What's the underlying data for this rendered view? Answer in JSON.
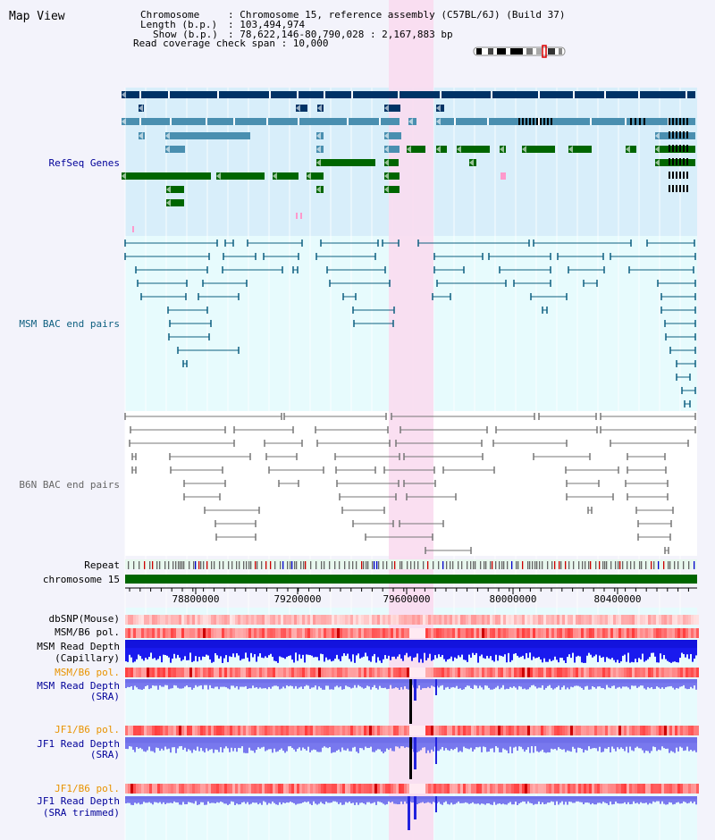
{
  "title": "Map View",
  "header": {
    "chromosome_key": "Chromosome",
    "chromosome_val": ": Chromosome 15, reference assembly (C57BL/6J) (Build 37)",
    "length_key": "Length (b.p.)",
    "length_val": ": 103,494,974",
    "show_key": "Show (b.p.)",
    "show_val": ": 78,622,146-80,790,028 : 2,167,883 bp",
    "coverage_line": "Read coverage check span : 10,000"
  },
  "colors": {
    "refseq_bg": "#d8eefa",
    "bac_bg": "#e7fbfd",
    "highlight": "#fadcf0",
    "navy": "#003366",
    "steel": "#4a8fb0",
    "green": "#006600",
    "msm_line": "#0e5f80",
    "b6n_line": "#777777",
    "label_navy": "#000099",
    "label_steel": "#0e5f80",
    "label_gray": "#666666",
    "label_orange": "#e89300"
  },
  "tracks": {
    "refseq": "RefSeq Genes",
    "msm_bac": "MSM BAC end pairs",
    "b6n_bac": "B6N BAC end pairs",
    "repeat": "Repeat",
    "chromosome": "chromosome 15",
    "dbsnp": "dbSNP(Mouse)",
    "msm_b6_pol_1": "MSM/B6 pol.",
    "msm_read_depth_cap_1": "MSM Read Depth",
    "msm_read_depth_cap_2": "(Capillary)",
    "msm_b6_pol_2": "MSM/B6 pol.",
    "msm_read_depth_sra_1": "MSM Read Depth",
    "msm_read_depth_sra_2": "(SRA)",
    "jf1_b6_pol_1": "JF1/B6 pol.",
    "jf1_read_depth_sra_1": "JF1 Read Depth",
    "jf1_read_depth_sra_2": "(SRA)",
    "jf1_b6_pol_2": "JF1/B6 pol.",
    "jf1_read_depth_trim_1": "JF1 Read Depth",
    "jf1_read_depth_trim_2": "(SRA trimmed)"
  },
  "axis": {
    "ticks": [
      "78800000",
      "79200000",
      "79600000",
      "80000000",
      "80400000"
    ]
  }
}
